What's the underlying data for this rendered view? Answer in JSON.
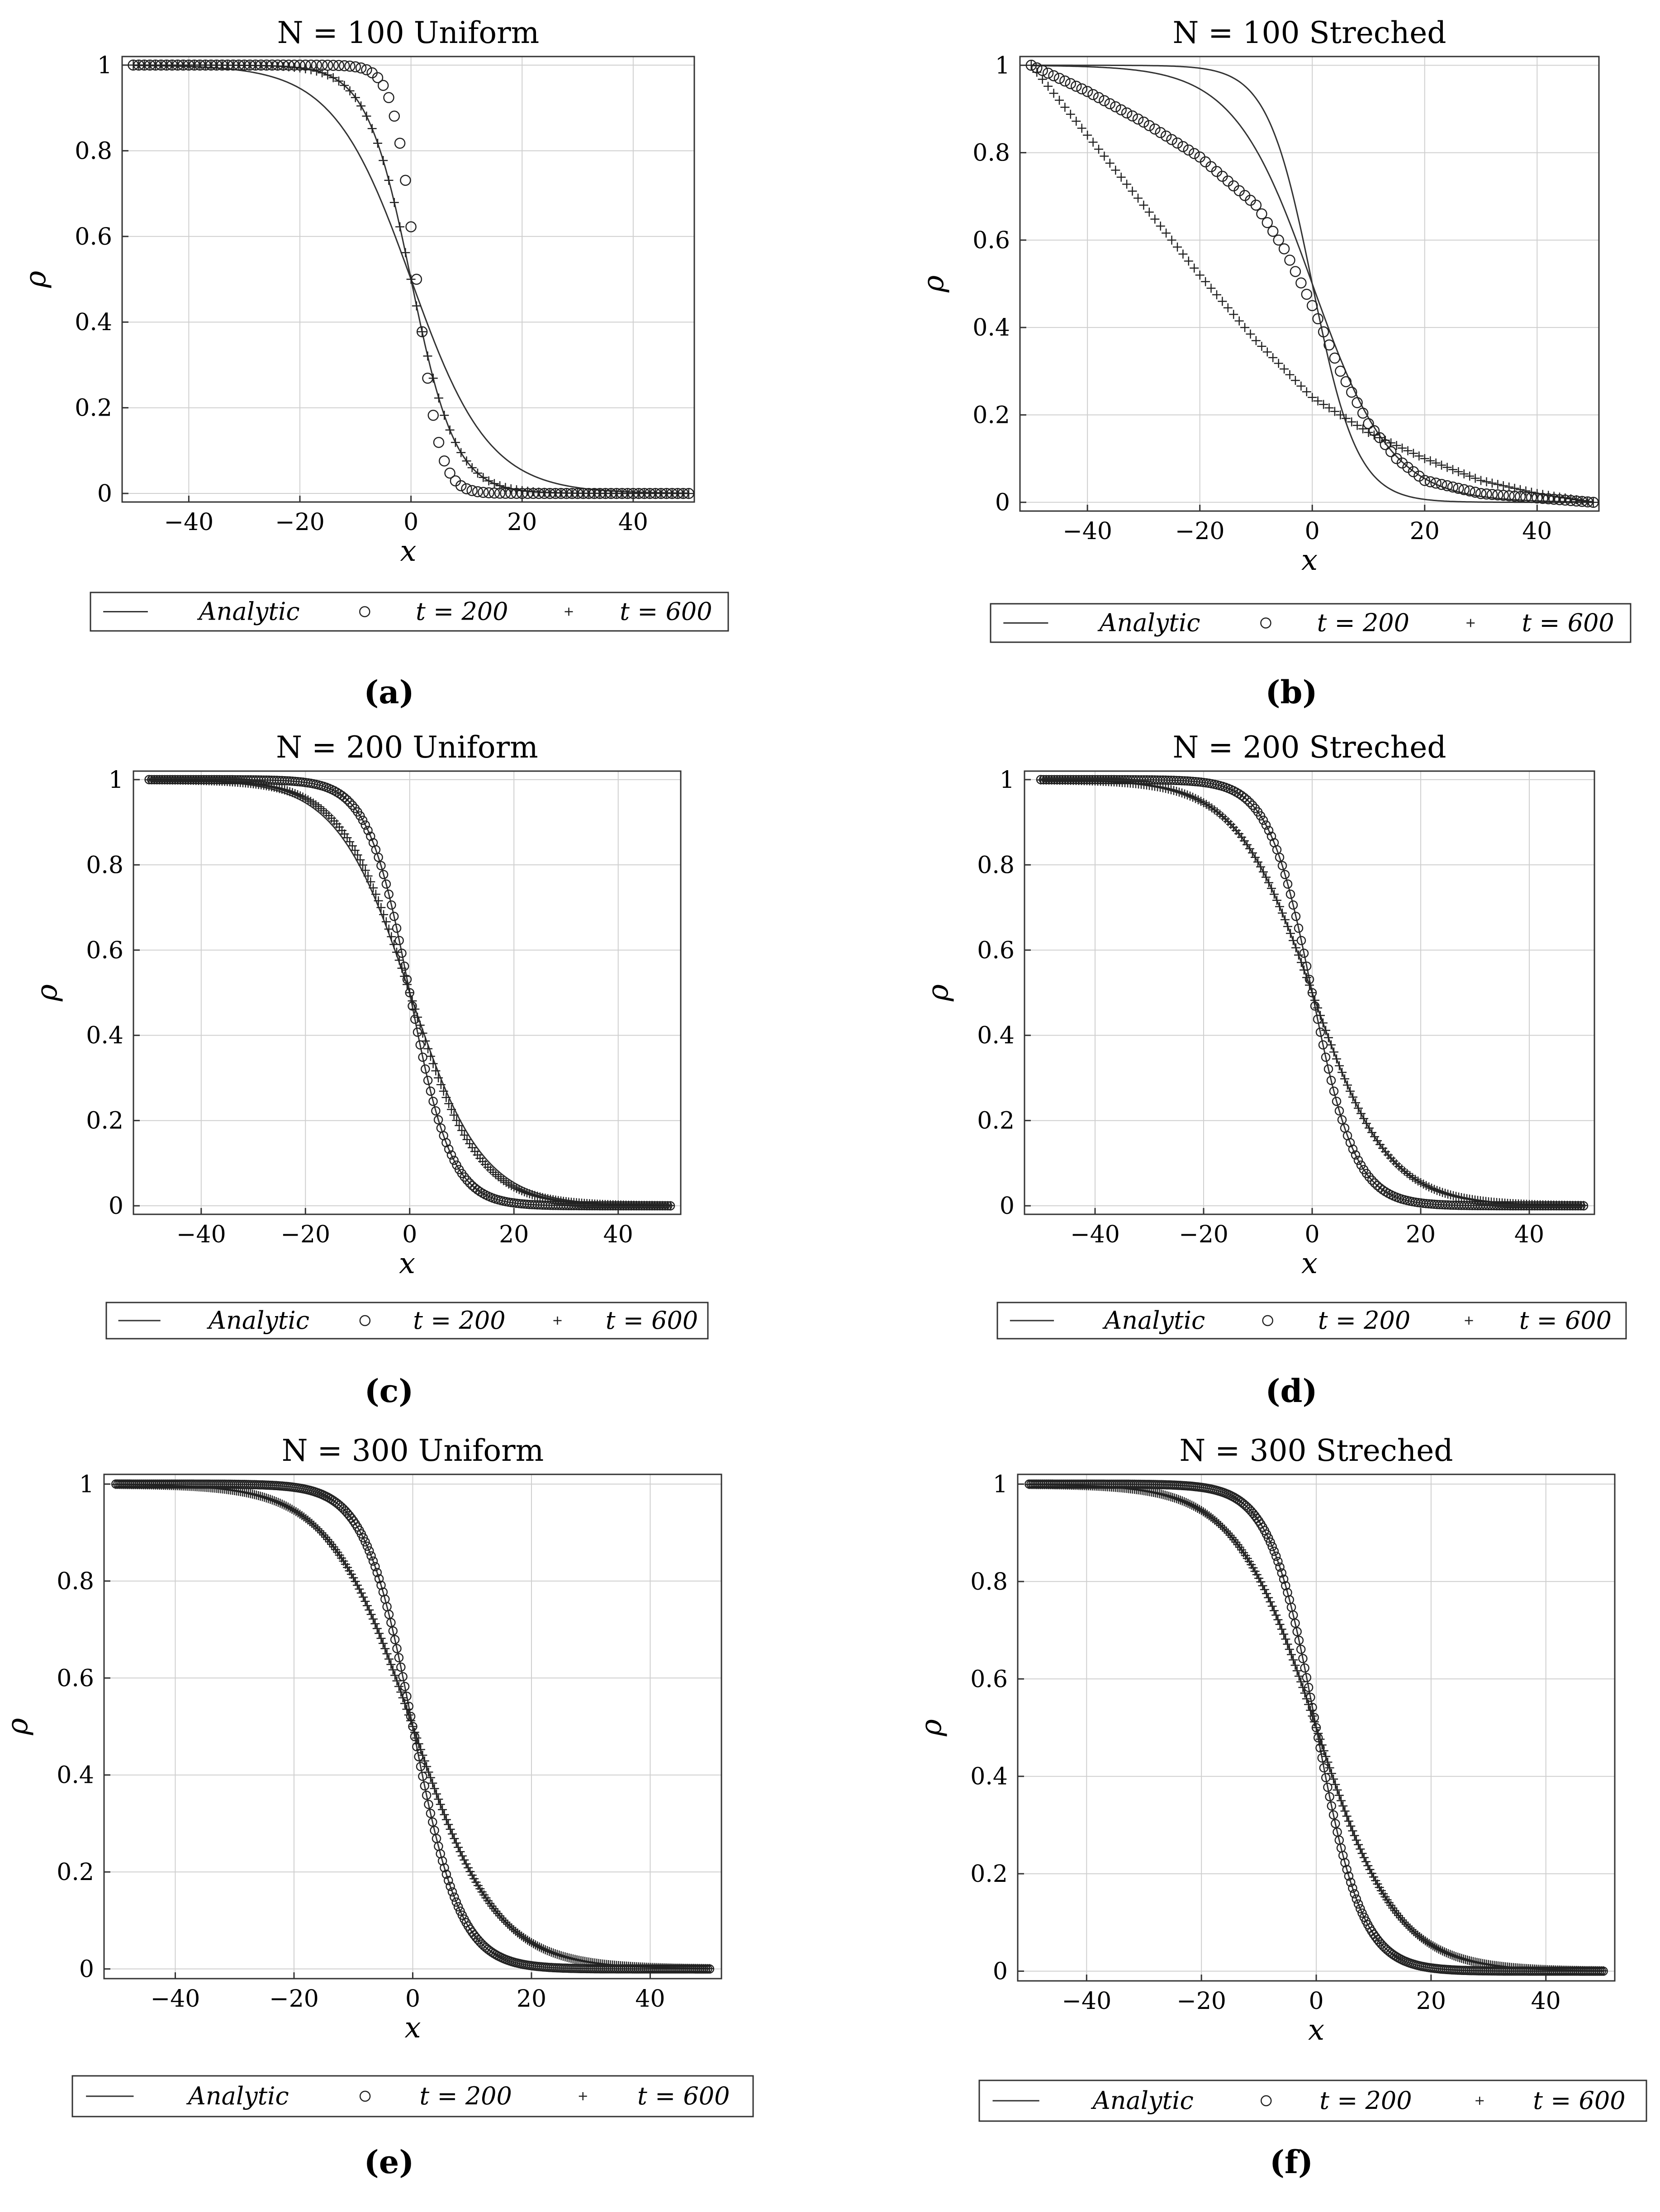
{
  "legend": {
    "analytic": "Analytic",
    "t200": "t = 200",
    "t600": "t = 600"
  },
  "chart_data": [
    {
      "id": "a",
      "type": "line",
      "title": "N = 100 Uniform",
      "xlabel": "x",
      "ylabel": "ρ",
      "xlim": [
        -52,
        51
      ],
      "ylim": [
        -0.02,
        1.02
      ],
      "xticks": [
        "−40",
        "−20",
        "0",
        "20",
        "40"
      ],
      "xtick_values": [
        -40,
        -20,
        0,
        20,
        40
      ],
      "yticks": [
        "0",
        "0.2",
        "0.4",
        "0.6",
        "0.8",
        "1"
      ],
      "ytick_values": [
        0,
        0.2,
        0.4,
        0.6,
        0.8,
        1
      ],
      "grid": true,
      "legend_position": "bottom",
      "caption": "(a)",
      "analytic_curves": [
        {
          "name": "Analytic t = 600",
          "model": "rho = 0.5*(1 - tanh(x/w))",
          "center": 0,
          "width": 14
        },
        {
          "name": "Analytic t = 200",
          "model": "rho = 0.5*(1 - tanh(x/w))",
          "center": 0,
          "width": 8
        }
      ],
      "series": [
        {
          "name": "t = 200",
          "marker": "circle",
          "n_points": 101,
          "x_range": [
            -50,
            50
          ],
          "model": "0.5*(1 - tanh((x - center)/w))",
          "center": 1,
          "width": 4
        },
        {
          "name": "t = 600",
          "marker": "plus",
          "n_points": 101,
          "x_range": [
            -50,
            50
          ],
          "model": "0.5*(1 - tanh((x - center)/w))",
          "center": 0,
          "width": 8
        }
      ]
    },
    {
      "id": "b",
      "type": "line",
      "title": "N = 100 Streched",
      "xlabel": "x",
      "ylabel": "ρ",
      "xlim": [
        -52,
        51
      ],
      "ylim": [
        -0.02,
        1.02
      ],
      "xticks": [
        "−40",
        "−20",
        "0",
        "20",
        "40"
      ],
      "xtick_values": [
        -40,
        -20,
        0,
        20,
        40
      ],
      "yticks": [
        "0",
        "0.2",
        "0.4",
        "0.6",
        "0.8",
        "1"
      ],
      "ytick_values": [
        0,
        0.2,
        0.4,
        0.6,
        0.8,
        1
      ],
      "grid": true,
      "legend_position": "bottom",
      "caption": "(b)",
      "analytic_curves": [
        {
          "name": "Analytic t = 600",
          "model": "rho = 0.5*(1 - tanh(x/w))",
          "center": 0,
          "width": 14
        },
        {
          "name": "Analytic t = 200",
          "model": "rho = 0.5*(1 - tanh(x/w))",
          "center": 0,
          "width": 8
        }
      ],
      "series": [
        {
          "name": "t = 200",
          "marker": "circle",
          "n_points": 101,
          "x_range": [
            -50,
            50
          ],
          "x": [
            -50,
            -40,
            -30,
            -20,
            -10,
            -5,
            0,
            5,
            10,
            15,
            20,
            30,
            40,
            50
          ],
          "y": [
            1.0,
            0.94,
            0.87,
            0.79,
            0.68,
            0.58,
            0.45,
            0.3,
            0.18,
            0.1,
            0.05,
            0.02,
            0.01,
            0.0
          ]
        },
        {
          "name": "t = 600",
          "marker": "plus",
          "n_points": 101,
          "x_range": [
            -50,
            50
          ],
          "x": [
            -50,
            -40,
            -30,
            -20,
            -10,
            0,
            10,
            20,
            30,
            40,
            50
          ],
          "y": [
            1.0,
            0.84,
            0.68,
            0.52,
            0.37,
            0.24,
            0.16,
            0.1,
            0.05,
            0.02,
            0.0
          ]
        }
      ]
    },
    {
      "id": "c",
      "type": "line",
      "title": "N = 200 Uniform",
      "xlabel": "x",
      "ylabel": "ρ",
      "xlim": [
        -53,
        52
      ],
      "ylim": [
        -0.02,
        1.02
      ],
      "xticks": [
        "−40",
        "−20",
        "0",
        "20",
        "40"
      ],
      "xtick_values": [
        -40,
        -20,
        0,
        20,
        40
      ],
      "yticks": [
        "0",
        "0.2",
        "0.4",
        "0.6",
        "0.8",
        "1"
      ],
      "ytick_values": [
        0,
        0.2,
        0.4,
        0.6,
        0.8,
        1
      ],
      "grid": true,
      "legend_position": "bottom",
      "caption": "(c)",
      "analytic_curves": [
        {
          "name": "Analytic t = 600",
          "model": "rho = 0.5*(1 - tanh(x/w))",
          "center": 0,
          "width": 14
        },
        {
          "name": "Analytic t = 200",
          "model": "rho = 0.5*(1 - tanh(x/w))",
          "center": 0,
          "width": 8
        }
      ],
      "series": [
        {
          "name": "t = 200",
          "marker": "circle",
          "n_points": 201,
          "x_range": [
            -50,
            50
          ],
          "model": "0.5*(1 - tanh((x - center)/w))",
          "center": 0,
          "width": 8
        },
        {
          "name": "t = 600",
          "marker": "plus",
          "n_points": 201,
          "x_range": [
            -50,
            50
          ],
          "model": "0.5*(1 - tanh((x - center)/w))",
          "center": 0,
          "width": 13
        }
      ]
    },
    {
      "id": "d",
      "type": "line",
      "title": "N = 200 Streched",
      "xlabel": "x",
      "ylabel": "ρ",
      "xlim": [
        -53,
        52
      ],
      "ylim": [
        -0.02,
        1.02
      ],
      "xticks": [
        "−40",
        "−20",
        "0",
        "20",
        "40"
      ],
      "xtick_values": [
        -40,
        -20,
        0,
        20,
        40
      ],
      "yticks": [
        "0",
        "0.2",
        "0.4",
        "0.6",
        "0.8",
        "1"
      ],
      "ytick_values": [
        0,
        0.2,
        0.4,
        0.6,
        0.8,
        1
      ],
      "grid": true,
      "legend_position": "bottom",
      "caption": "(d)",
      "analytic_curves": [
        {
          "name": "Analytic t = 600",
          "model": "rho = 0.5*(1 - tanh(x/w))",
          "center": 0,
          "width": 14
        },
        {
          "name": "Analytic t = 200",
          "model": "rho = 0.5*(1 - tanh(x/w))",
          "center": 0,
          "width": 8
        }
      ],
      "series": [
        {
          "name": "t = 200",
          "marker": "circle",
          "n_points": 201,
          "x_range": [
            -50,
            50
          ],
          "model": "0.5*(1 - tanh((x - center)/w))",
          "center": 0,
          "width": 8
        },
        {
          "name": "t = 600",
          "marker": "plus",
          "n_points": 201,
          "x_range": [
            -50,
            50
          ],
          "model": "0.5*(1 - tanh((x - center)/w))",
          "center": 0,
          "width": 14
        }
      ]
    },
    {
      "id": "e",
      "type": "line",
      "title": "N = 300 Uniform",
      "xlabel": "x",
      "ylabel": "ρ",
      "xlim": [
        -52,
        52
      ],
      "ylim": [
        -0.02,
        1.02
      ],
      "xticks": [
        "−40",
        "−20",
        "0",
        "20",
        "40"
      ],
      "xtick_values": [
        -40,
        -20,
        0,
        20,
        40
      ],
      "yticks": [
        "0",
        "0.2",
        "0.4",
        "0.6",
        "0.8",
        "1"
      ],
      "ytick_values": [
        0,
        0.2,
        0.4,
        0.6,
        0.8,
        1
      ],
      "grid": true,
      "legend_position": "bottom",
      "caption": "(e)",
      "analytic_curves": [
        {
          "name": "Analytic t = 600",
          "model": "rho = 0.5*(1 - tanh(x/w))",
          "center": 0,
          "width": 14
        },
        {
          "name": "Analytic t = 200",
          "model": "rho = 0.5*(1 - tanh(x/w))",
          "center": 0,
          "width": 8
        }
      ],
      "series": [
        {
          "name": "t = 200",
          "marker": "circle",
          "n_points": 301,
          "x_range": [
            -50,
            50
          ],
          "model": "0.5*(1 - tanh((x - center)/w))",
          "center": 0,
          "width": 8
        },
        {
          "name": "t = 600",
          "marker": "plus",
          "n_points": 301,
          "x_range": [
            -50,
            50
          ],
          "model": "0.5*(1 - tanh((x - center)/w))",
          "center": 0,
          "width": 14
        }
      ]
    },
    {
      "id": "f",
      "type": "line",
      "title": "N = 300 Streched",
      "xlabel": "x",
      "ylabel": "ρ",
      "xlim": [
        -52,
        52
      ],
      "ylim": [
        -0.02,
        1.02
      ],
      "xticks": [
        "−40",
        "−20",
        "0",
        "20",
        "40"
      ],
      "xtick_values": [
        -40,
        -20,
        0,
        20,
        40
      ],
      "yticks": [
        "0",
        "0.2",
        "0.4",
        "0.6",
        "0.8",
        "1"
      ],
      "ytick_values": [
        0,
        0.2,
        0.4,
        0.6,
        0.8,
        1
      ],
      "grid": true,
      "legend_position": "bottom",
      "caption": "(f)",
      "analytic_curves": [
        {
          "name": "Analytic t = 600",
          "model": "rho = 0.5*(1 - tanh(x/w))",
          "center": 0,
          "width": 14
        },
        {
          "name": "Analytic t = 200",
          "model": "rho = 0.5*(1 - tanh(x/w))",
          "center": 0,
          "width": 8
        }
      ],
      "series": [
        {
          "name": "t = 200",
          "marker": "circle",
          "n_points": 301,
          "x_range": [
            -50,
            50
          ],
          "model": "0.5*(1 - tanh((x - center)/w))",
          "center": 0,
          "width": 8
        },
        {
          "name": "t = 600",
          "marker": "plus",
          "n_points": 301,
          "x_range": [
            -50,
            50
          ],
          "model": "0.5*(1 - tanh((x - center)/w))",
          "center": 0,
          "width": 14
        }
      ]
    }
  ]
}
